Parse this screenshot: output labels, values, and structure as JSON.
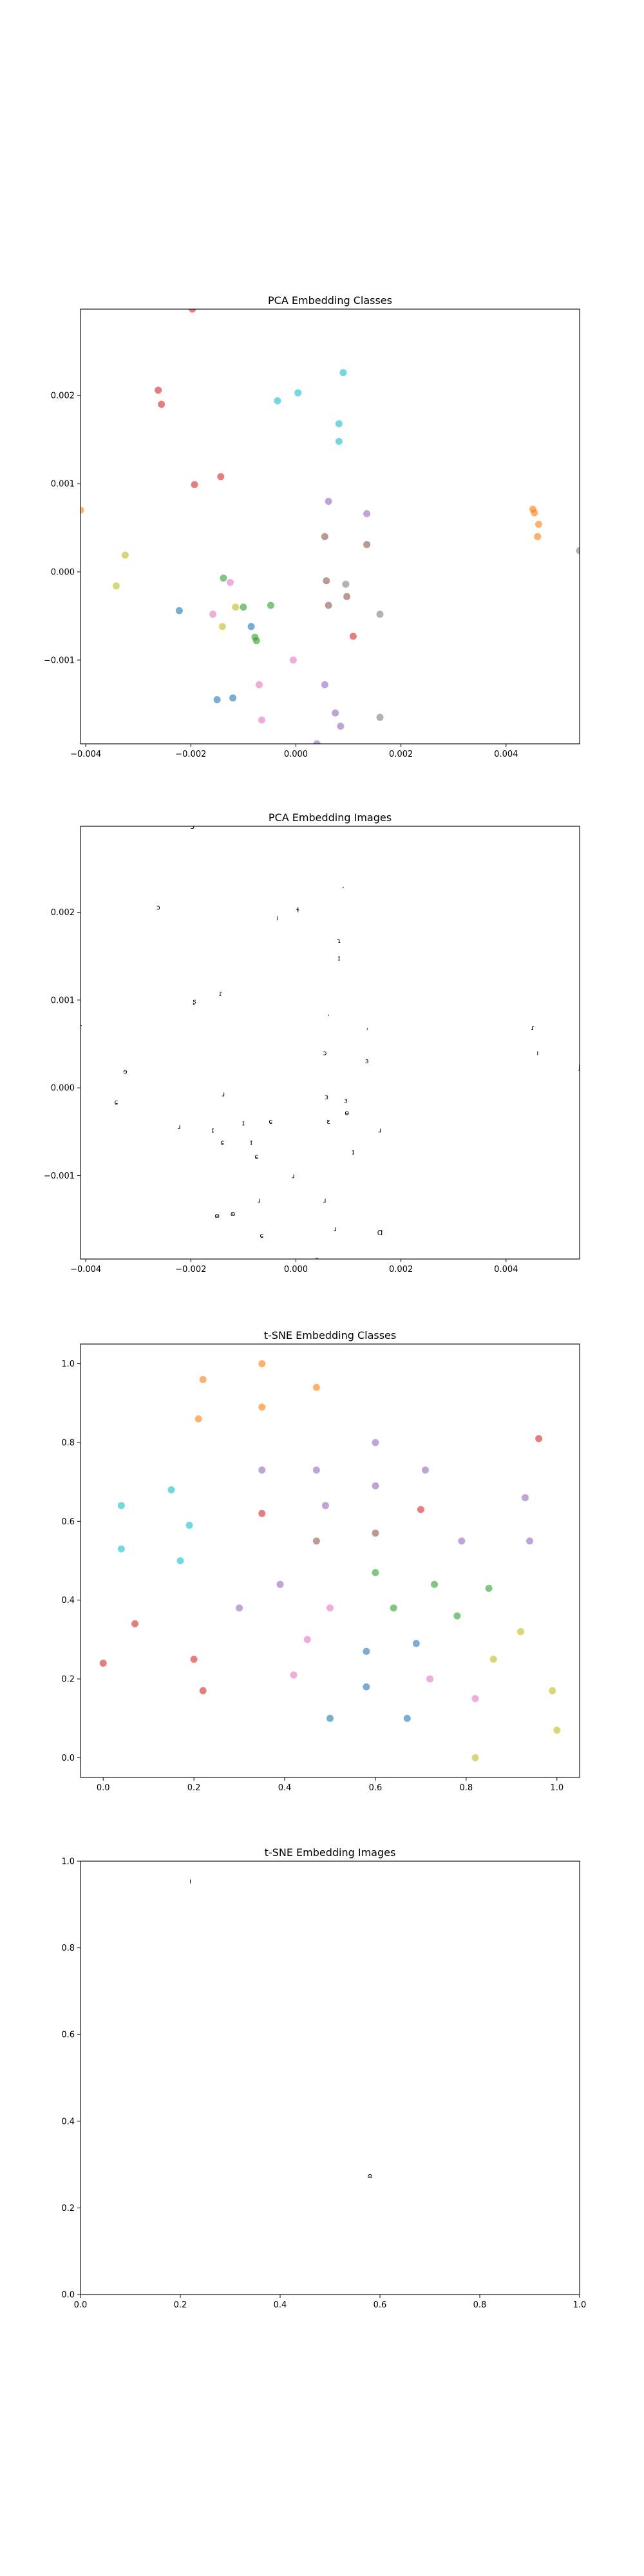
{
  "chart_data": [
    {
      "type": "scatter",
      "title": "PCA Embedding Classes",
      "xlim": [
        -0.0041,
        0.0054
      ],
      "ylim": [
        -0.00195,
        0.00298
      ],
      "x_ticks": [
        -0.004,
        -0.002,
        0.0,
        0.002,
        0.004
      ],
      "x_tick_labels": [
        "−0.004",
        "−0.002",
        "0.000",
        "0.002",
        "0.004"
      ],
      "y_ticks": [
        -0.001,
        0.0,
        0.001,
        0.002
      ],
      "y_tick_labels": [
        "−0.001",
        "0.000",
        "0.001",
        "0.002"
      ],
      "grid": false,
      "marker_alpha": 0.6,
      "points": [
        {
          "x": -0.00197,
          "y": 0.00298,
          "c": 3
        },
        {
          "x": -0.00262,
          "y": 0.00206,
          "c": 3
        },
        {
          "x": -0.00256,
          "y": 0.0019,
          "c": 3
        },
        {
          "x": -0.00193,
          "y": 0.00099,
          "c": 3
        },
        {
          "x": -0.00143,
          "y": 0.00108,
          "c": 3
        },
        {
          "x": 0.00109,
          "y": -0.00073,
          "c": 3
        },
        {
          "x": -0.00035,
          "y": 0.00194,
          "c": 9
        },
        {
          "x": 4e-05,
          "y": 0.00203,
          "c": 9
        },
        {
          "x": 0.0009,
          "y": 0.00226,
          "c": 9
        },
        {
          "x": 0.00082,
          "y": 0.00168,
          "c": 9
        },
        {
          "x": 0.00082,
          "y": 0.00148,
          "c": 9
        },
        {
          "x": 0.00451,
          "y": 0.00071,
          "c": 1
        },
        {
          "x": 0.00454,
          "y": 0.00067,
          "c": 1
        },
        {
          "x": 0.00462,
          "y": 0.00054,
          "c": 1
        },
        {
          "x": 0.0046,
          "y": 0.0004,
          "c": 1
        },
        {
          "x": -0.0041,
          "y": 0.0007,
          "c": 1
        },
        {
          "x": -0.00325,
          "y": 0.00019,
          "c": 8
        },
        {
          "x": -0.00342,
          "y": -0.00016,
          "c": 8
        },
        {
          "x": -0.0014,
          "y": -0.00062,
          "c": 8
        },
        {
          "x": -0.00115,
          "y": -0.0004,
          "c": 8
        },
        {
          "x": -0.00138,
          "y": -7e-05,
          "c": 2
        },
        {
          "x": -0.001,
          "y": -0.0004,
          "c": 2
        },
        {
          "x": -0.00048,
          "y": -0.00038,
          "c": 2
        },
        {
          "x": -0.00078,
          "y": -0.00074,
          "c": 2
        },
        {
          "x": -0.00075,
          "y": -0.00078,
          "c": 2
        },
        {
          "x": -0.00222,
          "y": -0.00044,
          "c": 0
        },
        {
          "x": -0.00085,
          "y": -0.00062,
          "c": 0
        },
        {
          "x": -0.0012,
          "y": -0.00143,
          "c": 0
        },
        {
          "x": -0.0015,
          "y": -0.00145,
          "c": 0
        },
        {
          "x": 0.00062,
          "y": 0.0008,
          "c": 4
        },
        {
          "x": 0.00135,
          "y": 0.00066,
          "c": 4
        },
        {
          "x": 0.00055,
          "y": -0.00128,
          "c": 4
        },
        {
          "x": 0.00075,
          "y": -0.0016,
          "c": 4
        },
        {
          "x": 0.00085,
          "y": -0.00175,
          "c": 4
        },
        {
          "x": 0.0004,
          "y": -0.00195,
          "c": 4
        },
        {
          "x": 0.00055,
          "y": 0.0004,
          "c": 5
        },
        {
          "x": 0.00135,
          "y": 0.00031,
          "c": 5
        },
        {
          "x": 0.00058,
          "y": -0.0001,
          "c": 5
        },
        {
          "x": 0.00062,
          "y": -0.00038,
          "c": 5
        },
        {
          "x": 0.00097,
          "y": -0.00028,
          "c": 5
        },
        {
          "x": 0.00095,
          "y": -0.00014,
          "c": 7
        },
        {
          "x": 0.0016,
          "y": -0.00048,
          "c": 7
        },
        {
          "x": 0.0016,
          "y": -0.00165,
          "c": 7
        },
        {
          "x": -0.00158,
          "y": -0.00048,
          "c": 6
        },
        {
          "x": -0.00125,
          "y": -0.00012,
          "c": 6
        },
        {
          "x": -0.0007,
          "y": -0.00128,
          "c": 6
        },
        {
          "x": -5e-05,
          "y": -0.001,
          "c": 6
        },
        {
          "x": -0.00065,
          "y": -0.00168,
          "c": 6
        },
        {
          "x": 0.0054,
          "y": 0.00024,
          "c": 7
        }
      ]
    },
    {
      "type": "scatter",
      "title": "PCA Embedding Images",
      "xlim": [
        -0.0041,
        0.0054
      ],
      "ylim": [
        -0.00195,
        0.00298
      ],
      "x_ticks": [
        -0.004,
        -0.002,
        0.0,
        0.002,
        0.004
      ],
      "x_tick_labels": [
        "−0.004",
        "−0.002",
        "0.000",
        "0.002",
        "0.004"
      ],
      "y_ticks": [
        -0.001,
        0.0,
        0.001,
        0.002
      ],
      "y_tick_labels": [
        "−0.001",
        "0.000",
        "0.001",
        "0.002"
      ],
      "grid": false,
      "points": [
        {
          "x": -0.00197,
          "y": 0.00298,
          "g": "3"
        },
        {
          "x": -0.00262,
          "y": 0.00206,
          "g": "ɔ"
        },
        {
          "x": -0.00035,
          "y": 0.00194,
          "g": "ı"
        },
        {
          "x": 4e-05,
          "y": 0.00203,
          "g": "ɬ"
        },
        {
          "x": 0.0009,
          "y": 0.00226,
          "g": "ʼ"
        },
        {
          "x": 0.00082,
          "y": 0.00168,
          "g": "ɿ"
        },
        {
          "x": 0.00082,
          "y": 0.00148,
          "g": "ɪ"
        },
        {
          "x": -0.00193,
          "y": 0.00099,
          "g": "ʂ"
        },
        {
          "x": -0.00143,
          "y": 0.00108,
          "g": "ɾ"
        },
        {
          "x": 0.00062,
          "y": 0.0008,
          "g": "ʹ"
        },
        {
          "x": 0.00135,
          "y": 0.00066,
          "g": "ʴ"
        },
        {
          "x": 0.00451,
          "y": 0.00069,
          "g": "ɾ"
        },
        {
          "x": 0.0046,
          "y": 0.0004,
          "g": "ı"
        },
        {
          "x": -0.0041,
          "y": 0.0007,
          "g": "ɾ"
        },
        {
          "x": 0.0054,
          "y": 0.00024,
          "g": "ʃ"
        },
        {
          "x": 0.00055,
          "y": 0.0004,
          "g": "ɔ"
        },
        {
          "x": 0.00135,
          "y": 0.00031,
          "g": "ɜ"
        },
        {
          "x": -0.00325,
          "y": 0.00019,
          "g": "ɘ"
        },
        {
          "x": -0.00138,
          "y": -7e-05,
          "g": "ɹ"
        },
        {
          "x": 0.00058,
          "y": -0.0001,
          "g": "ɜ"
        },
        {
          "x": 0.00095,
          "y": -0.00014,
          "g": "ɜ"
        },
        {
          "x": -0.00342,
          "y": -0.00016,
          "g": "ɕ"
        },
        {
          "x": 0.00062,
          "y": -0.00038,
          "g": "ɛ"
        },
        {
          "x": 0.00097,
          "y": -0.00028,
          "g": "ɵ"
        },
        {
          "x": -0.00048,
          "y": -0.00038,
          "g": "ɕ"
        },
        {
          "x": -0.001,
          "y": -0.0004,
          "g": "ɪ"
        },
        {
          "x": -0.00222,
          "y": -0.00044,
          "g": "ɹ"
        },
        {
          "x": -0.00158,
          "y": -0.00048,
          "g": "ɪ"
        },
        {
          "x": 0.0016,
          "y": -0.00048,
          "g": "ɹ"
        },
        {
          "x": -0.0014,
          "y": -0.00062,
          "g": "ɕ"
        },
        {
          "x": -0.00085,
          "y": -0.00062,
          "g": "ɪ"
        },
        {
          "x": -0.00075,
          "y": -0.00078,
          "g": "ɕ"
        },
        {
          "x": 0.00109,
          "y": -0.00073,
          "g": "ɪ"
        },
        {
          "x": -5e-05,
          "y": -0.001,
          "g": "ɹ"
        },
        {
          "x": 0.00055,
          "y": -0.00128,
          "g": "ɹ"
        },
        {
          "x": -0.0007,
          "y": -0.00128,
          "g": "ɹ"
        },
        {
          "x": -0.0015,
          "y": -0.00145,
          "g": "ɷ"
        },
        {
          "x": -0.0012,
          "y": -0.00143,
          "g": "ɷ"
        },
        {
          "x": 0.00075,
          "y": -0.0016,
          "g": "ɹ"
        },
        {
          "x": -0.00065,
          "y": -0.00168,
          "g": "ɕ"
        },
        {
          "x": 0.0016,
          "y": -0.00165,
          "g": "Ɑ"
        },
        {
          "x": 0.0004,
          "y": -0.00195,
          "g": "ɔ"
        }
      ]
    },
    {
      "type": "scatter",
      "title": "t-SNE Embedding Classes",
      "xlim": [
        -0.05,
        1.05
      ],
      "ylim": [
        -0.05,
        1.05
      ],
      "x_ticks": [
        0.0,
        0.2,
        0.4,
        0.6,
        0.8,
        1.0
      ],
      "x_tick_labels": [
        "0.0",
        "0.2",
        "0.4",
        "0.6",
        "0.8",
        "1.0"
      ],
      "y_ticks": [
        0.0,
        0.2,
        0.4,
        0.6,
        0.8,
        1.0
      ],
      "y_tick_labels": [
        "0.0",
        "0.2",
        "0.4",
        "0.6",
        "0.8",
        "1.0"
      ],
      "grid": false,
      "marker_alpha": 0.6,
      "points": [
        {
          "x": 0.35,
          "y": 1.0,
          "c": 1
        },
        {
          "x": 0.22,
          "y": 0.96,
          "c": 1
        },
        {
          "x": 0.47,
          "y": 0.94,
          "c": 1
        },
        {
          "x": 0.35,
          "y": 0.89,
          "c": 1
        },
        {
          "x": 0.21,
          "y": 0.86,
          "c": 1
        },
        {
          "x": 0.96,
          "y": 0.81,
          "c": 3
        },
        {
          "x": 0.35,
          "y": 0.62,
          "c": 3
        },
        {
          "x": 0.7,
          "y": 0.63,
          "c": 3
        },
        {
          "x": 0.07,
          "y": 0.34,
          "c": 3
        },
        {
          "x": 0.0,
          "y": 0.24,
          "c": 3
        },
        {
          "x": 0.2,
          "y": 0.25,
          "c": 3
        },
        {
          "x": 0.22,
          "y": 0.17,
          "c": 3
        },
        {
          "x": 0.6,
          "y": 0.8,
          "c": 4
        },
        {
          "x": 0.35,
          "y": 0.73,
          "c": 4
        },
        {
          "x": 0.47,
          "y": 0.73,
          "c": 4
        },
        {
          "x": 0.71,
          "y": 0.73,
          "c": 4
        },
        {
          "x": 0.6,
          "y": 0.69,
          "c": 4
        },
        {
          "x": 0.93,
          "y": 0.66,
          "c": 4
        },
        {
          "x": 0.49,
          "y": 0.64,
          "c": 4
        },
        {
          "x": 0.79,
          "y": 0.55,
          "c": 4
        },
        {
          "x": 0.94,
          "y": 0.55,
          "c": 4
        },
        {
          "x": 0.39,
          "y": 0.44,
          "c": 4
        },
        {
          "x": 0.3,
          "y": 0.38,
          "c": 4
        },
        {
          "x": 0.6,
          "y": 0.57,
          "c": 5
        },
        {
          "x": 0.47,
          "y": 0.55,
          "c": 5
        },
        {
          "x": 0.15,
          "y": 0.68,
          "c": 9
        },
        {
          "x": 0.04,
          "y": 0.64,
          "c": 9
        },
        {
          "x": 0.19,
          "y": 0.59,
          "c": 9
        },
        {
          "x": 0.04,
          "y": 0.53,
          "c": 9
        },
        {
          "x": 0.17,
          "y": 0.5,
          "c": 9
        },
        {
          "x": 0.6,
          "y": 0.47,
          "c": 2
        },
        {
          "x": 0.73,
          "y": 0.44,
          "c": 2
        },
        {
          "x": 0.85,
          "y": 0.43,
          "c": 2
        },
        {
          "x": 0.64,
          "y": 0.38,
          "c": 2
        },
        {
          "x": 0.78,
          "y": 0.36,
          "c": 2
        },
        {
          "x": 0.92,
          "y": 0.32,
          "c": 8
        },
        {
          "x": 0.86,
          "y": 0.25,
          "c": 8
        },
        {
          "x": 0.99,
          "y": 0.17,
          "c": 8
        },
        {
          "x": 1.0,
          "y": 0.07,
          "c": 8
        },
        {
          "x": 0.82,
          "y": 0.0,
          "c": 8
        },
        {
          "x": 0.5,
          "y": 0.38,
          "c": 6
        },
        {
          "x": 0.45,
          "y": 0.3,
          "c": 6
        },
        {
          "x": 0.42,
          "y": 0.21,
          "c": 6
        },
        {
          "x": 0.72,
          "y": 0.2,
          "c": 6
        },
        {
          "x": 0.82,
          "y": 0.15,
          "c": 6
        },
        {
          "x": 0.58,
          "y": 0.27,
          "c": 0
        },
        {
          "x": 0.69,
          "y": 0.29,
          "c": 0
        },
        {
          "x": 0.58,
          "y": 0.18,
          "c": 0
        },
        {
          "x": 0.5,
          "y": 0.1,
          "c": 0
        },
        {
          "x": 0.67,
          "y": 0.1,
          "c": 0
        }
      ]
    },
    {
      "type": "scatter",
      "title": "t-SNE Embedding Images",
      "xlim": [
        0.0,
        1.0
      ],
      "ylim": [
        0.0,
        1.0
      ],
      "x_ticks": [
        0.0,
        0.2,
        0.4,
        0.6,
        0.8,
        1.0
      ],
      "x_tick_labels": [
        "0.0",
        "0.2",
        "0.4",
        "0.6",
        "0.8",
        "1.0"
      ],
      "y_ticks": [
        0.0,
        0.2,
        0.4,
        0.6,
        0.8,
        1.0
      ],
      "y_tick_labels": [
        "0.0",
        "0.2",
        "0.4",
        "0.6",
        "0.8",
        "1.0"
      ],
      "grid": false,
      "points": [
        {
          "x": 0.22,
          "y": 0.955,
          "g": "ı"
        },
        {
          "x": 0.58,
          "y": 0.275,
          "g": "ɷ"
        }
      ]
    }
  ],
  "palette": [
    "#1f77b4",
    "#ff7f0e",
    "#2ca02c",
    "#d62728",
    "#9467bd",
    "#8c564b",
    "#e377c2",
    "#7f7f7f",
    "#bcbd22",
    "#17becf"
  ]
}
